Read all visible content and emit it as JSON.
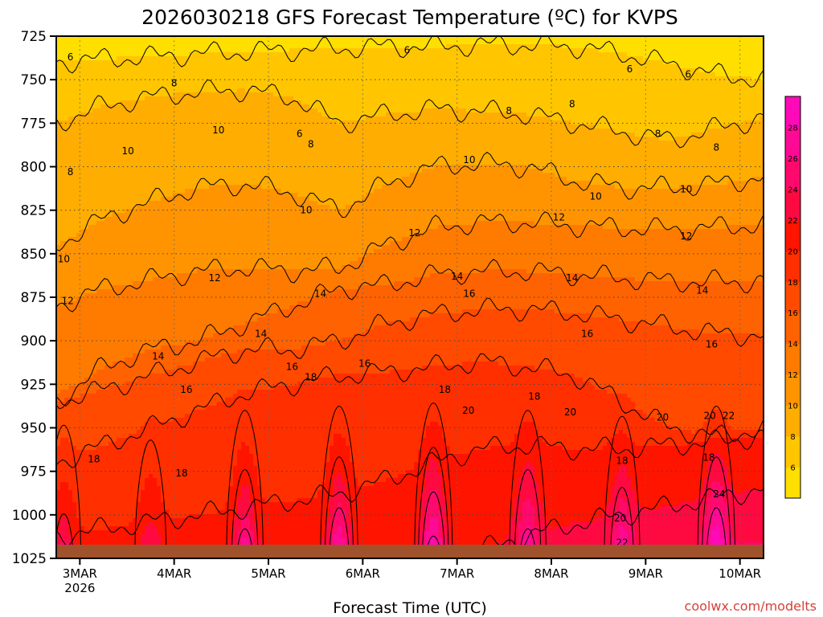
{
  "chart_data": {
    "type": "heatmap",
    "title": "2026030218 GFS Forecast Temperature (ºC) for KVPS",
    "xlabel": "Forecast Time (UTC)",
    "ylabel": "",
    "credit": "coolwx.com/modelts",
    "y_axis": {
      "unit": "hPa",
      "range": [
        725,
        1025
      ],
      "inverted": true,
      "ticks": [
        "725",
        "750",
        "775",
        "800",
        "825",
        "850",
        "875",
        "900",
        "925",
        "950",
        "975",
        "1000",
        "1025"
      ]
    },
    "x_axis": {
      "range_days": [
        -0.25,
        7.25
      ],
      "ticks": [
        {
          "label": "3MAR",
          "sub": "2026",
          "day": 0
        },
        {
          "label": "4MAR",
          "sub": "",
          "day": 1
        },
        {
          "label": "5MAR",
          "sub": "",
          "day": 2
        },
        {
          "label": "6MAR",
          "sub": "",
          "day": 3
        },
        {
          "label": "7MAR",
          "sub": "",
          "day": 4
        },
        {
          "label": "8MAR",
          "sub": "",
          "day": 5
        },
        {
          "label": "9MAR",
          "sub": "",
          "day": 6
        },
        {
          "label": "10MAR",
          "sub": "",
          "day": 7
        }
      ]
    },
    "colorbar": {
      "levels": [
        4,
        6,
        8,
        10,
        12,
        14,
        16,
        18,
        20,
        22,
        24,
        26,
        28,
        30
      ],
      "colors": [
        "#ffdf00",
        "#ffc600",
        "#ffad00",
        "#ff9400",
        "#ff7b00",
        "#ff6200",
        "#ff4a00",
        "#ff2f00",
        "#ff1400",
        "#ff0a40",
        "#ff0a6c",
        "#ff0a94",
        "#ff0ab8"
      ],
      "tick_labels": [
        "6",
        "8",
        "10",
        "12",
        "14",
        "16",
        "18",
        "20",
        "22",
        "24",
        "26",
        "28"
      ]
    },
    "ground_color": "#a0522d",
    "contour_levels": [
      6,
      8,
      10,
      12,
      14,
      16,
      18,
      20,
      22,
      24
    ],
    "contours": [
      {
        "level": 6,
        "pressure": [
          740,
          738,
          737,
          735,
          734,
          733,
          732,
          731,
          731,
          730,
          730,
          731,
          735,
          741,
          747,
          750
        ]
      },
      {
        "level": 8,
        "pressure": [
          775,
          765,
          760,
          757,
          756,
          760,
          775,
          770,
          767,
          768,
          770,
          775,
          780,
          785,
          778,
          772
        ]
      },
      {
        "level": 10,
        "pressure": [
          845,
          830,
          820,
          812,
          810,
          815,
          825,
          810,
          800,
          798,
          800,
          808,
          812,
          812,
          810,
          806
        ]
      },
      {
        "level": 12,
        "pressure": [
          880,
          870,
          865,
          860,
          858,
          860,
          858,
          845,
          835,
          832,
          832,
          834,
          835,
          836,
          835,
          833
        ]
      },
      {
        "level": 14,
        "pressure": [
          935,
          915,
          905,
          900,
          890,
          880,
          870,
          868,
          862,
          860,
          860,
          862,
          864,
          866,
          866,
          866
        ]
      },
      {
        "level": 16,
        "pressure": [
          935,
          928,
          920,
          912,
          905,
          905,
          900,
          890,
          885,
          882,
          882,
          884,
          888,
          892,
          896,
          897
        ]
      },
      {
        "level": 18,
        "pressure": [
          970,
          960,
          950,
          940,
          930,
          925,
          920,
          918,
          915,
          912,
          915,
          920,
          935,
          950,
          955,
          950
        ]
      },
      {
        "level": 20,
        "pressure": [
          1012,
          1008,
          1004,
          1000,
          996,
          992,
          988,
          980,
          970,
          962,
          960,
          962,
          962,
          960,
          958,
          955
        ]
      },
      {
        "level": 22,
        "pressure": [
          1025,
          1025,
          1025,
          1025,
          1025,
          1025,
          1025,
          1025,
          1025,
          1020,
          1012,
          1005,
          1000,
          995,
          990,
          985
        ]
      }
    ],
    "warm_cells": [
      {
        "center_day": -0.17,
        "peak": 23
      },
      {
        "center_day": 0.75,
        "peak": 22
      },
      {
        "center_day": 1.75,
        "peak": 25
      },
      {
        "center_day": 2.75,
        "peak": 26
      },
      {
        "center_day": 3.75,
        "peak": 27
      },
      {
        "center_day": 4.75,
        "peak": 25
      },
      {
        "center_day": 5.75,
        "peak": 24
      },
      {
        "center_day": 6.75,
        "peak": 26
      }
    ],
    "contour_labels": [
      {
        "text": "6",
        "day": -0.1,
        "p": 737
      },
      {
        "text": "6",
        "day": 3.47,
        "p": 733
      },
      {
        "text": "6",
        "day": 5.83,
        "p": 744
      },
      {
        "text": "6",
        "day": 6.45,
        "p": 747
      },
      {
        "text": "6",
        "day": 2.33,
        "p": 781
      },
      {
        "text": "8",
        "day": 1.0,
        "p": 752
      },
      {
        "text": "8",
        "day": -0.1,
        "p": 803
      },
      {
        "text": "8",
        "day": 2.45,
        "p": 787
      },
      {
        "text": "8",
        "day": 4.55,
        "p": 768
      },
      {
        "text": "8",
        "day": 5.22,
        "p": 764
      },
      {
        "text": "8",
        "day": 6.13,
        "p": 781
      },
      {
        "text": "8",
        "day": 6.75,
        "p": 789
      },
      {
        "text": "10",
        "day": 1.47,
        "p": 779
      },
      {
        "text": "10",
        "day": 0.51,
        "p": 791
      },
      {
        "text": "10",
        "day": -0.17,
        "p": 853
      },
      {
        "text": "10",
        "day": 2.4,
        "p": 825
      },
      {
        "text": "10",
        "day": 4.13,
        "p": 796
      },
      {
        "text": "10",
        "day": 5.47,
        "p": 817
      },
      {
        "text": "10",
        "day": 6.43,
        "p": 813
      },
      {
        "text": "12",
        "day": -0.13,
        "p": 877
      },
      {
        "text": "12",
        "day": 1.43,
        "p": 864
      },
      {
        "text": "12",
        "day": 3.55,
        "p": 838
      },
      {
        "text": "12",
        "day": 5.08,
        "p": 829
      },
      {
        "text": "12",
        "day": 6.43,
        "p": 840
      },
      {
        "text": "14",
        "day": 0.83,
        "p": 909
      },
      {
        "text": "14",
        "day": 1.92,
        "p": 896
      },
      {
        "text": "14",
        "day": 2.55,
        "p": 873
      },
      {
        "text": "14",
        "day": 4.0,
        "p": 863
      },
      {
        "text": "14",
        "day": 5.22,
        "p": 864
      },
      {
        "text": "14",
        "day": 6.6,
        "p": 871
      },
      {
        "text": "16",
        "day": 1.13,
        "p": 928
      },
      {
        "text": "16",
        "day": 2.25,
        "p": 915
      },
      {
        "text": "16",
        "day": 3.02,
        "p": 913
      },
      {
        "text": "16",
        "day": 4.13,
        "p": 873
      },
      {
        "text": "16",
        "day": 5.38,
        "p": 896
      },
      {
        "text": "16",
        "day": 6.7,
        "p": 902
      },
      {
        "text": "18",
        "day": 0.15,
        "p": 968
      },
      {
        "text": "18",
        "day": 1.08,
        "p": 976
      },
      {
        "text": "18",
        "day": 2.45,
        "p": 921
      },
      {
        "text": "18",
        "day": 3.87,
        "p": 928
      },
      {
        "text": "18",
        "day": 4.82,
        "p": 932
      },
      {
        "text": "18",
        "day": 5.75,
        "p": 969
      },
      {
        "text": "18",
        "day": 6.67,
        "p": 967
      },
      {
        "text": "20",
        "day": 4.12,
        "p": 940
      },
      {
        "text": "20",
        "day": 5.2,
        "p": 941
      },
      {
        "text": "20",
        "day": 6.18,
        "p": 944
      },
      {
        "text": "20",
        "day": 5.73,
        "p": 1002
      },
      {
        "text": "20",
        "day": 6.68,
        "p": 943
      },
      {
        "text": "22",
        "day": 6.88,
        "p": 943
      },
      {
        "text": "22",
        "day": 5.75,
        "p": 1016
      },
      {
        "text": "24",
        "day": 6.78,
        "p": 988
      }
    ]
  }
}
